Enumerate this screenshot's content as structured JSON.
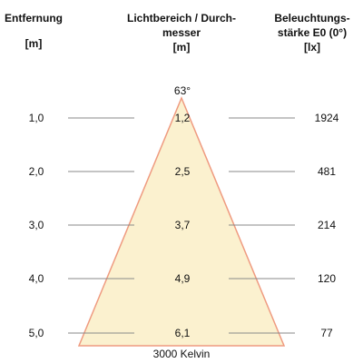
{
  "headers": {
    "distance": [
      "Entfernung",
      "[m]"
    ],
    "beam_diameter": [
      "Lichtbereich / Durch-",
      "messer",
      "[m]"
    ],
    "illuminance": [
      "Beleuchtungs-",
      "stärke E0 (0°)",
      "[lx]"
    ]
  },
  "beam_angle": "63°",
  "rows": [
    {
      "distance": "1,0",
      "diameter": "1,2",
      "lux": "1924"
    },
    {
      "distance": "2,0",
      "diameter": "2,5",
      "lux": "481"
    },
    {
      "distance": "3,0",
      "diameter": "3,7",
      "lux": "214"
    },
    {
      "distance": "4,0",
      "diameter": "4,9",
      "lux": "120"
    },
    {
      "distance": "5,0",
      "diameter": "6,1",
      "lux": "77"
    }
  ],
  "color_temperature": "3000 Kelvin",
  "colors": {
    "cone_fill": "#fbf1cf",
    "cone_edge": "#ef9b80",
    "guide_line": "#8a8a8a"
  }
}
